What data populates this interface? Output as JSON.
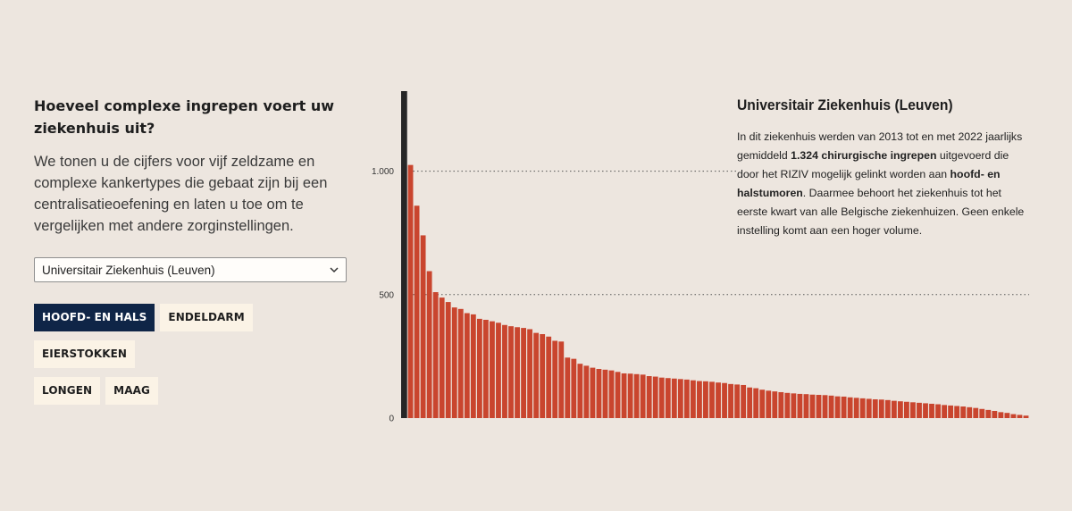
{
  "left": {
    "question": "Hoeveel complexe ingrepen voert uw ziekenhuis uit?",
    "intro": "We tonen u de cijfers voor vijf zeldzame en complexe kankertypes die gebaat zijn bij een centralisatieoefening en laten u toe om te vergelijken met andere zorginstellingen."
  },
  "select": {
    "value": "Universitair Ziekenhuis (Leuven)"
  },
  "buttons": [
    {
      "label": "HOOFD- EN HALS",
      "active": true
    },
    {
      "label": "ENDELDARM",
      "active": false
    },
    {
      "label": "EIERSTOKKEN",
      "active": false
    },
    {
      "label": "LONGEN",
      "active": false
    },
    {
      "label": "MAAG",
      "active": false
    }
  ],
  "info": {
    "title": "Universitair Ziekenhuis (Leuven)",
    "p1": "In dit ziekenhuis werden van 2013 tot en met 2022 jaarlijks gemiddeld ",
    "b1": "1.324 chirurgische ingrepen",
    "p2": " uitgevoerd die door het RIZIV mogelijk gelinkt worden aan ",
    "b2": "hoofd- en halstumoren",
    "p3": ". Daarmee behoort het ziekenhuis tot het eerste kwart van alle Belgische ziekenhuizen. Geen enkele instelling komt aan een hoger volume."
  },
  "colors": {
    "background": "#ede6df",
    "bar": "#c9452e",
    "highlight_bar": "#262626",
    "active_button": "#0f2547",
    "button": "#fbf3e6"
  },
  "chart_data": {
    "type": "bar",
    "title": "",
    "xlabel": "",
    "ylabel": "",
    "ylim": [
      0,
      1324
    ],
    "y_ticks": [
      0,
      500,
      1000
    ],
    "y_tick_labels": [
      "0",
      "500",
      "1.000"
    ],
    "grid": "dotted lines at 500 and 1.000",
    "highlight": {
      "label": "Universitair Ziekenhuis (Leuven)",
      "value": 1324
    },
    "values": [
      1324,
      1025,
      860,
      740,
      595,
      510,
      488,
      470,
      448,
      442,
      425,
      420,
      402,
      398,
      392,
      386,
      377,
      372,
      368,
      365,
      360,
      345,
      340,
      330,
      313,
      310,
      245,
      240,
      220,
      212,
      204,
      199,
      196,
      193,
      187,
      181,
      180,
      178,
      176,
      170,
      168,
      164,
      162,
      160,
      158,
      156,
      153,
      150,
      149,
      147,
      144,
      142,
      138,
      136,
      134,
      124,
      121,
      115,
      111,
      108,
      105,
      102,
      100,
      98,
      97,
      95,
      94,
      93,
      91,
      88,
      87,
      84,
      82,
      80,
      78,
      76,
      75,
      73,
      70,
      68,
      66,
      64,
      62,
      60,
      58,
      56,
      53,
      51,
      49,
      47,
      44,
      41,
      37,
      33,
      29,
      24,
      21,
      16,
      13,
      10
    ]
  }
}
